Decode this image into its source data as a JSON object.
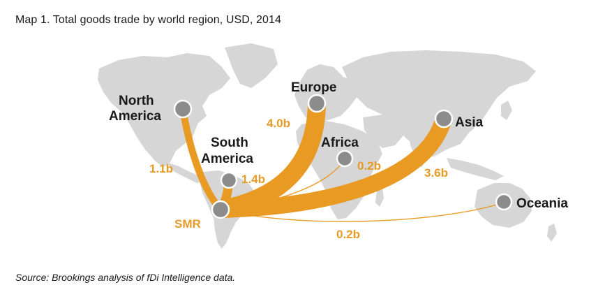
{
  "title": "Map 1. Total goods trade by world region, USD, 2014",
  "source": "Source: Brookings analysis of fDi Intelligence data.",
  "colors": {
    "flow": "#e89a23",
    "land": "#d6d6d6",
    "node": "#8c8c8c",
    "label": "#e69b27"
  },
  "origin": {
    "label": "SMR"
  },
  "regions": {
    "north_america": {
      "label_line1": "North",
      "label_line2": "America",
      "value": "1.1b"
    },
    "south_america": {
      "label_line1": "South",
      "label_line2": "America",
      "value": "1.4b"
    },
    "europe": {
      "label": "Europe",
      "value": "4.0b"
    },
    "africa": {
      "label": "Africa",
      "value": "0.2b"
    },
    "asia": {
      "label": "Asia",
      "value": "3.6b"
    },
    "oceania": {
      "label": "Oceania",
      "value": "0.2b"
    }
  }
}
